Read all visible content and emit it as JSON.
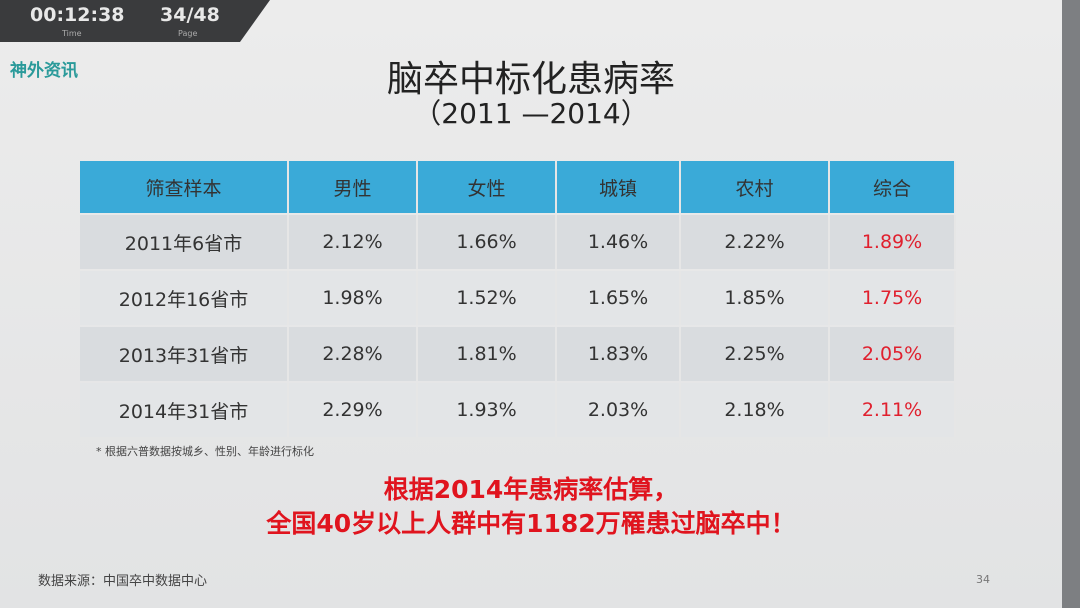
{
  "overlay": {
    "time": "00:12:38",
    "time_label": "Time",
    "page": "34/48",
    "page_label": "Page"
  },
  "logo": "神外资讯",
  "title": "脑卒中标化患病率",
  "subtitle": "（2011 —2014）",
  "table": {
    "header": [
      "筛查样本",
      "男性",
      "女性",
      "城镇",
      "农村",
      "综合"
    ],
    "rows": [
      [
        "2011年6省市",
        "2.12%",
        "1.66%",
        "1.46%",
        "2.22%",
        "1.89%"
      ],
      [
        "2012年16省市",
        "1.98%",
        "1.52%",
        "1.65%",
        "1.85%",
        "1.75%"
      ],
      [
        "2013年31省市",
        "2.28%",
        "1.81%",
        "1.83%",
        "2.25%",
        "2.05%"
      ],
      [
        "2014年31省市",
        "2.29%",
        "1.93%",
        "2.03%",
        "2.18%",
        "2.11%"
      ]
    ]
  },
  "footnote": "* 根据六普数据按城乡、性别、年龄进行标化",
  "highlight": [
    "根据2014年患病率估算，",
    "全国40岁以上人群中有1182万罹患过脑卒中！"
  ],
  "source": "数据来源：中国卒中数据中心",
  "slide_number": "34"
}
